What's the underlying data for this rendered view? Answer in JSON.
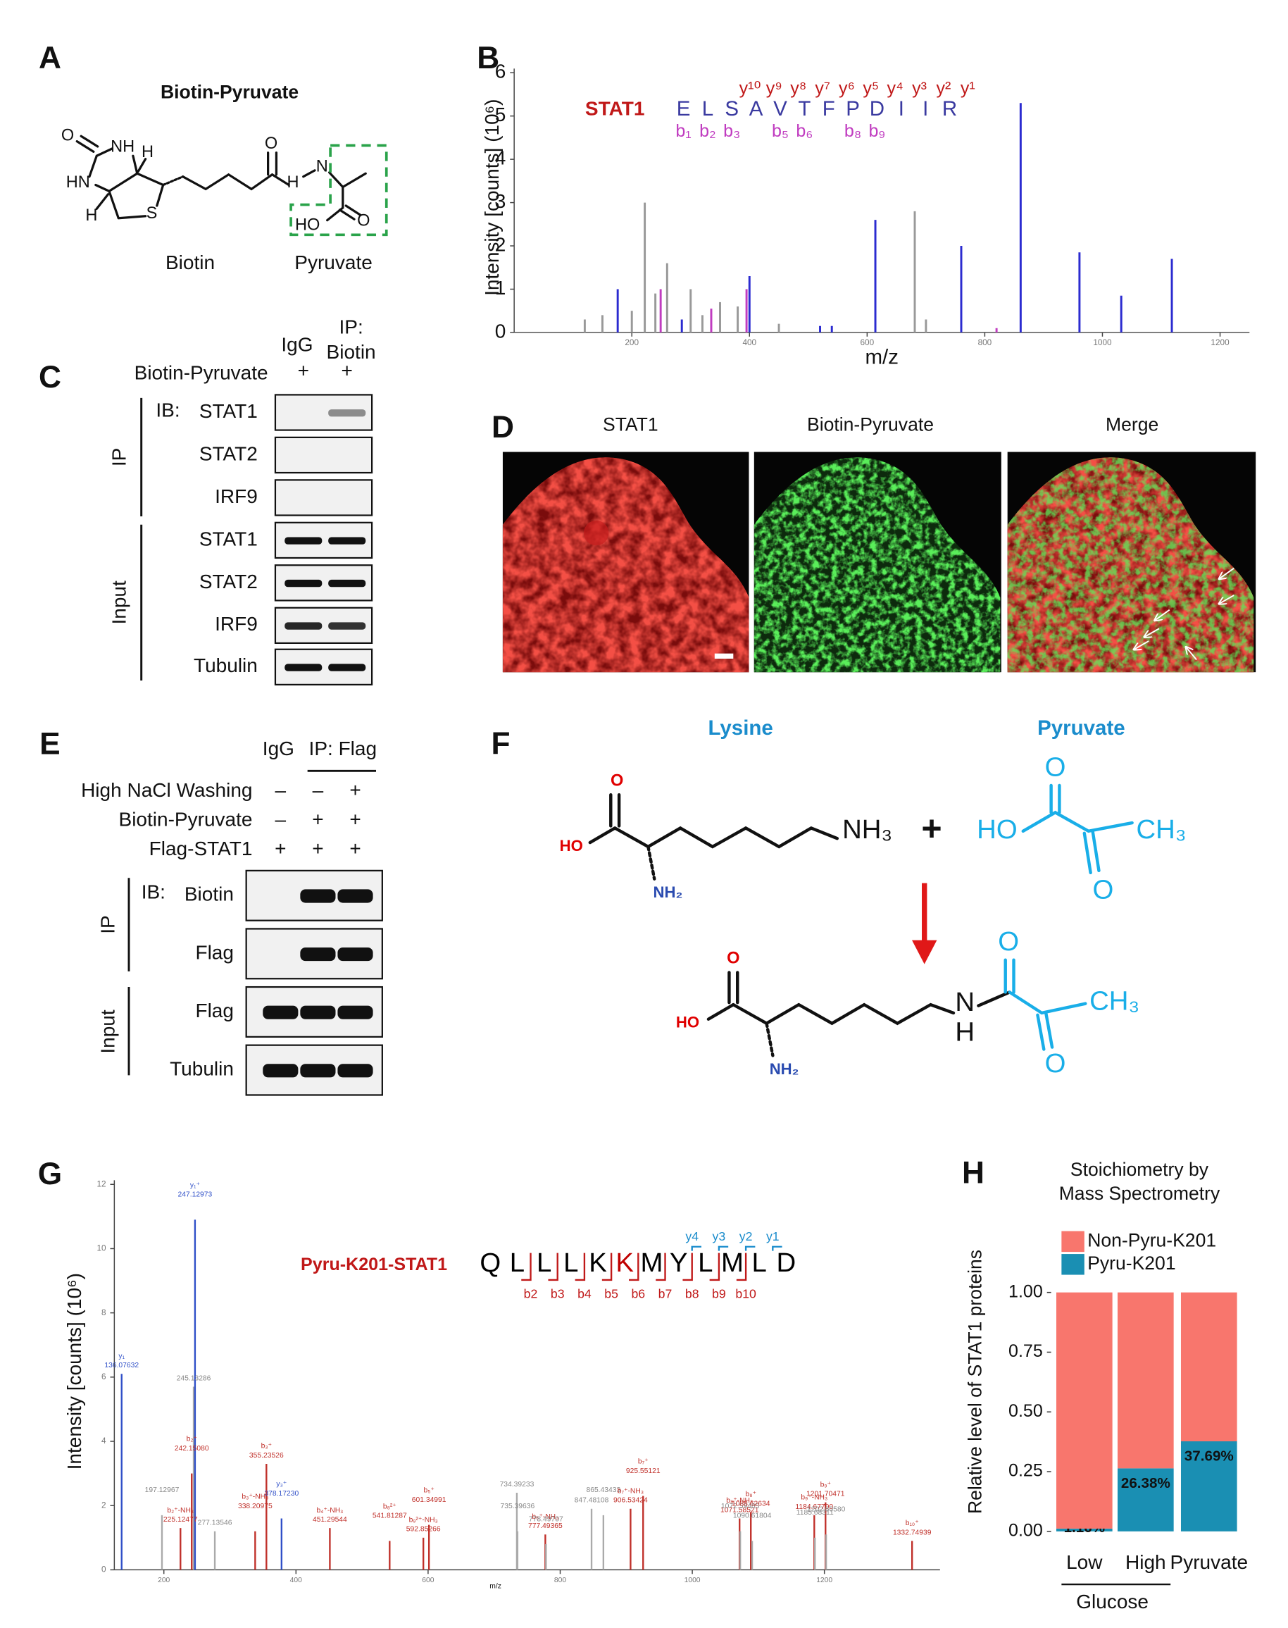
{
  "panel_labels": [
    "A",
    "B",
    "C",
    "D",
    "E",
    "F",
    "G",
    "H"
  ],
  "panel_a": {
    "title": "Biotin-Pyruvate",
    "atoms": [
      "O",
      "NH",
      "H",
      "HN",
      "H",
      "S",
      "O",
      "H",
      "N",
      "HO",
      "O"
    ],
    "captions": [
      "Biotin",
      "Pyruvate"
    ]
  },
  "panel_c": {
    "lanes": [
      "IgG",
      "IP:",
      "Biotin"
    ],
    "treatment": "Biotin-Pyruvate",
    "signs": [
      "+",
      "+"
    ],
    "ib": "IB:",
    "rows": [
      "STAT1",
      "STAT2",
      "IRF9",
      "STAT1",
      "STAT2",
      "IRF9",
      "Tubulin"
    ],
    "groups": [
      "IP",
      "Input"
    ]
  },
  "panel_d": {
    "titles": [
      "STAT1",
      "Biotin-Pyruvate",
      "Merge"
    ]
  },
  "panel_e": {
    "lanes": [
      "IgG",
      "IP: Flag"
    ],
    "treatments": [
      {
        "name": "High NaCl Washing",
        "signs": [
          "–",
          "–",
          "+"
        ]
      },
      {
        "name": "Biotin-Pyruvate",
        "signs": [
          "–",
          "+",
          "+"
        ]
      },
      {
        "name": "Flag-STAT1",
        "signs": [
          "+",
          "+",
          "+"
        ]
      }
    ],
    "ib": "IB:",
    "rows": [
      "Biotin",
      "Flag",
      "Flag",
      "Tubulin"
    ],
    "groups": [
      "IP",
      "Input"
    ]
  },
  "panel_f": {
    "reactants": [
      "Lysine",
      "Pyruvate"
    ],
    "lysine_atoms": [
      "O",
      "HO",
      "NH₂",
      "NH₃"
    ],
    "plus": "+",
    "pyruvate_atoms": [
      "O",
      "HO",
      "CH₃",
      "O"
    ],
    "product_atoms": [
      "O",
      "HO",
      "NH₂",
      "N",
      "H",
      "O",
      "CH₃",
      "O"
    ]
  },
  "chart_data": [
    {
      "type": "spectrum",
      "peptide": "STAT1",
      "sequence": [
        "E",
        "L",
        "S",
        "A",
        "V",
        "T",
        "F",
        "P",
        "D",
        "I",
        "I",
        "R"
      ],
      "y_ions": [
        "y¹⁰",
        "y⁹",
        "y⁸",
        "y⁷",
        "y⁶",
        "y⁵",
        "y⁴",
        "y³",
        "y²",
        "y¹"
      ],
      "b_ions": [
        "b₁",
        "b₂",
        "b₃",
        "b₅",
        "b₆",
        "b₈",
        "b₉"
      ],
      "x_label": "m/z",
      "y_label": "Intensity [counts] (10⁶)",
      "xlim": [
        0,
        1250
      ],
      "ylim": [
        0,
        6
      ],
      "xticks": [
        200,
        400,
        600,
        800,
        1000,
        1200
      ],
      "yticks": [
        0,
        1,
        2,
        3,
        4,
        5,
        6
      ],
      "x": [
        120,
        150,
        176,
        200,
        222,
        240,
        249,
        260,
        285,
        300,
        320,
        335,
        350,
        380,
        395,
        400,
        450,
        520,
        540,
        614,
        681,
        700,
        760,
        820,
        861,
        961,
        1032,
        1118
      ],
      "values": [
        0.3,
        0.4,
        1.0,
        0.5,
        3.0,
        0.9,
        1.0,
        1.6,
        0.3,
        1.0,
        0.4,
        0.55,
        0.7,
        0.6,
        1.0,
        1.3,
        0.2,
        0.15,
        0.15,
        2.6,
        2.8,
        0.3,
        2.0,
        0.1,
        5.3,
        1.85,
        0.85,
        1.7
      ],
      "colors": [
        "#999999",
        "#999999",
        "#2b2bd0",
        "#999999",
        "#999999",
        "#999999",
        "#c03cc0",
        "#999999",
        "#2b2bd0",
        "#999999",
        "#999999",
        "#c03cc0",
        "#999999",
        "#999999",
        "#c03cc0",
        "#2b2bd0",
        "#999999",
        "#2b2bd0",
        "#2b2bd0",
        "#2b2bd0",
        "#999999",
        "#999999",
        "#2b2bd0",
        "#c03cc0",
        "#2b2bd0",
        "#2b2bd0",
        "#2b2bd0",
        "#2b2bd0"
      ]
    },
    {
      "type": "spectrum",
      "peptide": "Pyru-K201-STAT1",
      "sequence": [
        "Q",
        "L",
        "L",
        "L",
        "K",
        "K",
        "M",
        "Y",
        "L",
        "M",
        "L",
        "D"
      ],
      "sequence_colors": [
        "#000000",
        "#000000",
        "#000000",
        "#000000",
        "#000000",
        "#c00000",
        "#000000",
        "#000000",
        "#000000",
        "#000000",
        "#000000",
        "#000000"
      ],
      "y_ions": [
        "y4",
        "y3",
        "y2",
        "y1"
      ],
      "b_ions": [
        "b2",
        "b3",
        "b4",
        "b5",
        "b6",
        "b7",
        "b8",
        "b9",
        "b10"
      ],
      "x_label": "m/z",
      "y_label": "Intensity [counts] (10⁶)",
      "xlim": [
        125,
        1375
      ],
      "ylim": [
        0,
        12
      ],
      "xticks": [
        200,
        400,
        600,
        800,
        1000,
        1200
      ],
      "yticks": [
        0,
        2,
        4,
        6,
        8,
        10,
        12
      ],
      "x": [
        136.07632,
        197.12967,
        225.12477,
        242.1508,
        245.13286,
        247.12973,
        277.13546,
        338.20975,
        355.23526,
        378.1723,
        451.29544,
        541.81287,
        592.85266,
        601.34991,
        734.39233,
        735.39636,
        777.49365,
        778.49707,
        847.48108,
        865.43433,
        906.53424,
        925.55121,
        1071.58521,
        1072.59485,
        1088.62634,
        1090.61804,
        1184.677,
        1185.68311,
        1201.70471,
        1202.6058,
        1332.74939
      ],
      "values": [
        6.1,
        1.7,
        1.3,
        3.0,
        5.7,
        10.9,
        1.2,
        1.2,
        3.3,
        1.6,
        1.3,
        0.9,
        1.0,
        1.4,
        2.4,
        1.2,
        1.1,
        0.8,
        1.9,
        1.7,
        1.9,
        2.3,
        1.6,
        1.2,
        1.8,
        0.9,
        1.7,
        1.0,
        2.1,
        1.1,
        0.9
      ],
      "colors": [
        "#3050c8",
        "#aaaaaa",
        "#c0302a",
        "#c0302a",
        "#aaaaaa",
        "#3050c8",
        "#aaaaaa",
        "#c0302a",
        "#c0302a",
        "#3050c8",
        "#c0302a",
        "#c0302a",
        "#c0302a",
        "#c0302a",
        "#aaaaaa",
        "#aaaaaa",
        "#c0302a",
        "#aaaaaa",
        "#aaaaaa",
        "#aaaaaa",
        "#c0302a",
        "#c0302a",
        "#c0302a",
        "#aaaaaa",
        "#c0302a",
        "#aaaaaa",
        "#c0302a",
        "#aaaaaa",
        "#c0302a",
        "#aaaaaa",
        "#c0302a"
      ],
      "peak_labels": [
        "y₁",
        null,
        "b₂⁺-NH₃",
        "b₂⁺",
        null,
        "y₁⁺",
        null,
        "b₃⁺-NH₃",
        "b₃⁺",
        "y₃⁺",
        "b₄⁺-NH₃",
        "b₈²⁺",
        "b₉²⁺-NH₃",
        "b₅⁺",
        null,
        null,
        "b₆⁺-NH₃",
        null,
        null,
        null,
        "b₇⁺-NH₃",
        "b₇⁺",
        "b₈⁺-NH₃",
        null,
        "b₈⁺",
        null,
        "b₉⁺-NH₃",
        null,
        "b₉⁺",
        null,
        "b₁₀⁺"
      ],
      "mz_labels": [
        "136.07632",
        "197.12967",
        "225.12477",
        "242.15080",
        "245.13286",
        "247.12973",
        "277.13546",
        "338.20975",
        "355.23526",
        "378.17230",
        "451.29544",
        "541.81287",
        "592.85266",
        "601.34991",
        "734.39233",
        "735.39636",
        "777.49365",
        "778.49707",
        "847.48108",
        "865.43433",
        "906.53424",
        "925.55121",
        "1071.58521",
        "1072.59485",
        "1088.62634",
        "1090.61804",
        "1184.67700",
        "1185.68311",
        "1201.70471",
        "1202.60580",
        "1332.74939"
      ]
    },
    {
      "type": "stacked_bar",
      "title": [
        "Stoichiometry by",
        "Mass Spectrometry"
      ],
      "categories": [
        "Low",
        "High",
        "Pyruvate"
      ],
      "group_label": "Glucose",
      "y_label": "Relative level of STAT1 proteins",
      "ylim": [
        0,
        1
      ],
      "yticks": [
        {
          "value": 0,
          "label": "0.00"
        },
        {
          "value": 0.25,
          "label": "0.25"
        },
        {
          "value": 0.5,
          "label": "0.50"
        },
        {
          "value": 0.75,
          "label": "0.75"
        },
        {
          "value": 1,
          "label": "1.00"
        }
      ],
      "series": [
        {
          "name": "Non-Pyru-K201",
          "color": "#f8766d",
          "values": [
            0.9884,
            0.7362,
            0.6231
          ]
        },
        {
          "name": "Pyru-K201",
          "color": "#1a8fb3",
          "values": [
            0.0116,
            0.2638,
            0.3769
          ],
          "value_labels": [
            "1.16%",
            "26.38%",
            "37.69%"
          ]
        }
      ]
    }
  ]
}
